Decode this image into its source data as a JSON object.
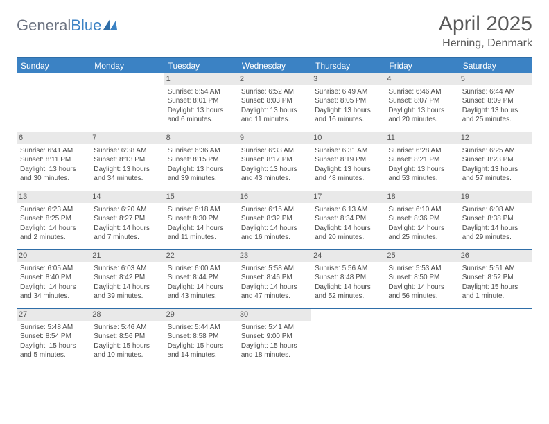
{
  "logo": {
    "word1": "General",
    "word2": "Blue"
  },
  "header": {
    "title": "April 2025",
    "location": "Herning, Denmark"
  },
  "colors": {
    "header_bg": "#3b82c4",
    "border": "#2f6ea8",
    "daynum_bg": "#e9e9e9",
    "text": "#4b4b4b",
    "title_text": "#595959"
  },
  "day_headers": [
    "Sunday",
    "Monday",
    "Tuesday",
    "Wednesday",
    "Thursday",
    "Friday",
    "Saturday"
  ],
  "weeks": [
    [
      {
        "day": null
      },
      {
        "day": null
      },
      {
        "day": "1",
        "sunrise": "Sunrise: 6:54 AM",
        "sunset": "Sunset: 8:01 PM",
        "daylight": "Daylight: 13 hours and 6 minutes."
      },
      {
        "day": "2",
        "sunrise": "Sunrise: 6:52 AM",
        "sunset": "Sunset: 8:03 PM",
        "daylight": "Daylight: 13 hours and 11 minutes."
      },
      {
        "day": "3",
        "sunrise": "Sunrise: 6:49 AM",
        "sunset": "Sunset: 8:05 PM",
        "daylight": "Daylight: 13 hours and 16 minutes."
      },
      {
        "day": "4",
        "sunrise": "Sunrise: 6:46 AM",
        "sunset": "Sunset: 8:07 PM",
        "daylight": "Daylight: 13 hours and 20 minutes."
      },
      {
        "day": "5",
        "sunrise": "Sunrise: 6:44 AM",
        "sunset": "Sunset: 8:09 PM",
        "daylight": "Daylight: 13 hours and 25 minutes."
      }
    ],
    [
      {
        "day": "6",
        "sunrise": "Sunrise: 6:41 AM",
        "sunset": "Sunset: 8:11 PM",
        "daylight": "Daylight: 13 hours and 30 minutes."
      },
      {
        "day": "7",
        "sunrise": "Sunrise: 6:38 AM",
        "sunset": "Sunset: 8:13 PM",
        "daylight": "Daylight: 13 hours and 34 minutes."
      },
      {
        "day": "8",
        "sunrise": "Sunrise: 6:36 AM",
        "sunset": "Sunset: 8:15 PM",
        "daylight": "Daylight: 13 hours and 39 minutes."
      },
      {
        "day": "9",
        "sunrise": "Sunrise: 6:33 AM",
        "sunset": "Sunset: 8:17 PM",
        "daylight": "Daylight: 13 hours and 43 minutes."
      },
      {
        "day": "10",
        "sunrise": "Sunrise: 6:31 AM",
        "sunset": "Sunset: 8:19 PM",
        "daylight": "Daylight: 13 hours and 48 minutes."
      },
      {
        "day": "11",
        "sunrise": "Sunrise: 6:28 AM",
        "sunset": "Sunset: 8:21 PM",
        "daylight": "Daylight: 13 hours and 53 minutes."
      },
      {
        "day": "12",
        "sunrise": "Sunrise: 6:25 AM",
        "sunset": "Sunset: 8:23 PM",
        "daylight": "Daylight: 13 hours and 57 minutes."
      }
    ],
    [
      {
        "day": "13",
        "sunrise": "Sunrise: 6:23 AM",
        "sunset": "Sunset: 8:25 PM",
        "daylight": "Daylight: 14 hours and 2 minutes."
      },
      {
        "day": "14",
        "sunrise": "Sunrise: 6:20 AM",
        "sunset": "Sunset: 8:27 PM",
        "daylight": "Daylight: 14 hours and 7 minutes."
      },
      {
        "day": "15",
        "sunrise": "Sunrise: 6:18 AM",
        "sunset": "Sunset: 8:30 PM",
        "daylight": "Daylight: 14 hours and 11 minutes."
      },
      {
        "day": "16",
        "sunrise": "Sunrise: 6:15 AM",
        "sunset": "Sunset: 8:32 PM",
        "daylight": "Daylight: 14 hours and 16 minutes."
      },
      {
        "day": "17",
        "sunrise": "Sunrise: 6:13 AM",
        "sunset": "Sunset: 8:34 PM",
        "daylight": "Daylight: 14 hours and 20 minutes."
      },
      {
        "day": "18",
        "sunrise": "Sunrise: 6:10 AM",
        "sunset": "Sunset: 8:36 PM",
        "daylight": "Daylight: 14 hours and 25 minutes."
      },
      {
        "day": "19",
        "sunrise": "Sunrise: 6:08 AM",
        "sunset": "Sunset: 8:38 PM",
        "daylight": "Daylight: 14 hours and 29 minutes."
      }
    ],
    [
      {
        "day": "20",
        "sunrise": "Sunrise: 6:05 AM",
        "sunset": "Sunset: 8:40 PM",
        "daylight": "Daylight: 14 hours and 34 minutes."
      },
      {
        "day": "21",
        "sunrise": "Sunrise: 6:03 AM",
        "sunset": "Sunset: 8:42 PM",
        "daylight": "Daylight: 14 hours and 39 minutes."
      },
      {
        "day": "22",
        "sunrise": "Sunrise: 6:00 AM",
        "sunset": "Sunset: 8:44 PM",
        "daylight": "Daylight: 14 hours and 43 minutes."
      },
      {
        "day": "23",
        "sunrise": "Sunrise: 5:58 AM",
        "sunset": "Sunset: 8:46 PM",
        "daylight": "Daylight: 14 hours and 47 minutes."
      },
      {
        "day": "24",
        "sunrise": "Sunrise: 5:56 AM",
        "sunset": "Sunset: 8:48 PM",
        "daylight": "Daylight: 14 hours and 52 minutes."
      },
      {
        "day": "25",
        "sunrise": "Sunrise: 5:53 AM",
        "sunset": "Sunset: 8:50 PM",
        "daylight": "Daylight: 14 hours and 56 minutes."
      },
      {
        "day": "26",
        "sunrise": "Sunrise: 5:51 AM",
        "sunset": "Sunset: 8:52 PM",
        "daylight": "Daylight: 15 hours and 1 minute."
      }
    ],
    [
      {
        "day": "27",
        "sunrise": "Sunrise: 5:48 AM",
        "sunset": "Sunset: 8:54 PM",
        "daylight": "Daylight: 15 hours and 5 minutes."
      },
      {
        "day": "28",
        "sunrise": "Sunrise: 5:46 AM",
        "sunset": "Sunset: 8:56 PM",
        "daylight": "Daylight: 15 hours and 10 minutes."
      },
      {
        "day": "29",
        "sunrise": "Sunrise: 5:44 AM",
        "sunset": "Sunset: 8:58 PM",
        "daylight": "Daylight: 15 hours and 14 minutes."
      },
      {
        "day": "30",
        "sunrise": "Sunrise: 5:41 AM",
        "sunset": "Sunset: 9:00 PM",
        "daylight": "Daylight: 15 hours and 18 minutes."
      },
      {
        "day": null
      },
      {
        "day": null
      },
      {
        "day": null
      }
    ]
  ]
}
